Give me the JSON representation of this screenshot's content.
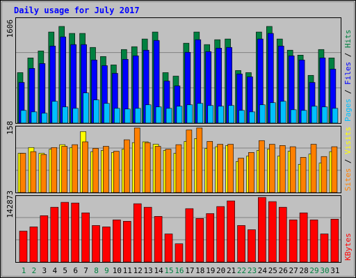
{
  "chart_data": [
    {
      "type": "bar",
      "title": "Daily usage for July 2017",
      "ylim": [
        0,
        1606
      ],
      "yticks": [
        1606
      ],
      "series": [
        {
          "name": "Hits",
          "color": "#008040",
          "values": [
            838,
            1082,
            1199,
            1513,
            1606,
            1490,
            1490,
            1257,
            1106,
            966,
            1222,
            1269,
            1397,
            1513,
            838,
            780,
            1327,
            1513,
            1304,
            1385,
            1397,
            873,
            838,
            1513,
            1606,
            1397,
            1211,
            1129,
            792,
            1222,
            1082
          ]
        },
        {
          "name": "Files",
          "color": "#0000ff",
          "values": [
            675,
            908,
            989,
            1280,
            1432,
            1304,
            1304,
            1048,
            954,
            826,
            1059,
            1117,
            1211,
            1373,
            698,
            617,
            1176,
            1385,
            1187,
            1245,
            1257,
            815,
            768,
            1397,
            1490,
            1280,
            1117,
            1048,
            675,
            1083,
            896
          ]
        },
        {
          "name": "Pages",
          "color": "#00c0ff",
          "values": [
            210,
            186,
            163,
            361,
            268,
            244,
            500,
            384,
            326,
            244,
            233,
            244,
            303,
            268,
            244,
            279,
            303,
            326,
            291,
            279,
            291,
            210,
            186,
            303,
            338,
            361,
            221,
            210,
            279,
            268,
            244
          ]
        }
      ]
    },
    {
      "type": "bar",
      "ylim": [
        0,
        158
      ],
      "yticks": [
        158
      ],
      "series": [
        {
          "name": "Visits",
          "color": "#ffff00",
          "values": [
            96,
            110,
            96,
            106,
            117,
            110,
            149,
            100,
            103,
            98,
            106,
            122,
            124,
            118,
            103,
            96,
            125,
            132,
            108,
            112,
            115,
            76,
            89,
            103,
            106,
            89,
            101,
            69,
            94,
            72,
            100
          ]
        },
        {
          "name": "Sites",
          "color": "#ff8000",
          "values": [
            96,
            100,
            93,
            110,
            113,
            117,
            124,
            108,
            113,
            101,
            129,
            158,
            122,
            113,
            106,
            117,
            153,
            158,
            125,
            118,
            118,
            84,
            98,
            127,
            118,
            115,
            112,
            86,
            118,
            88,
            112
          ]
        }
      ]
    },
    {
      "type": "bar",
      "ylim": [
        0,
        142873
      ],
      "yticks": [
        142873
      ],
      "categories": [
        "1",
        "2",
        "3",
        "4",
        "5",
        "6",
        "7",
        "8",
        "9",
        "10",
        "11",
        "12",
        "13",
        "14",
        "15",
        "16",
        "17",
        "18",
        "19",
        "20",
        "21",
        "22",
        "23",
        "24",
        "25",
        "26",
        "27",
        "28",
        "29",
        "30",
        "31"
      ],
      "category_colors": [
        "#008040",
        "#008040",
        "#000000",
        "#000000",
        "#000000",
        "#000000",
        "#000000",
        "#008040",
        "#008040",
        "#000000",
        "#000000",
        "#000000",
        "#000000",
        "#000000",
        "#008040",
        "#008040",
        "#000000",
        "#000000",
        "#000000",
        "#000000",
        "#000000",
        "#008040",
        "#008040",
        "#000000",
        "#000000",
        "#000000",
        "#000000",
        "#000000",
        "#008040",
        "#008040",
        "#000000"
      ],
      "series": [
        {
          "name": "KBytes",
          "color": "#ff0000",
          "values": [
            68330,
            77650,
            102500,
            121130,
            132000,
            130450,
            108700,
            80760,
            77650,
            93180,
            90070,
            128900,
            121130,
            100950,
            62120,
            40380,
            118030,
            96290,
            107160,
            122690,
            135110,
            80760,
            71440,
            142873,
            133560,
            121130,
            93180,
            108700,
            93180,
            62120,
            94730
          ]
        }
      ]
    }
  ]
}
